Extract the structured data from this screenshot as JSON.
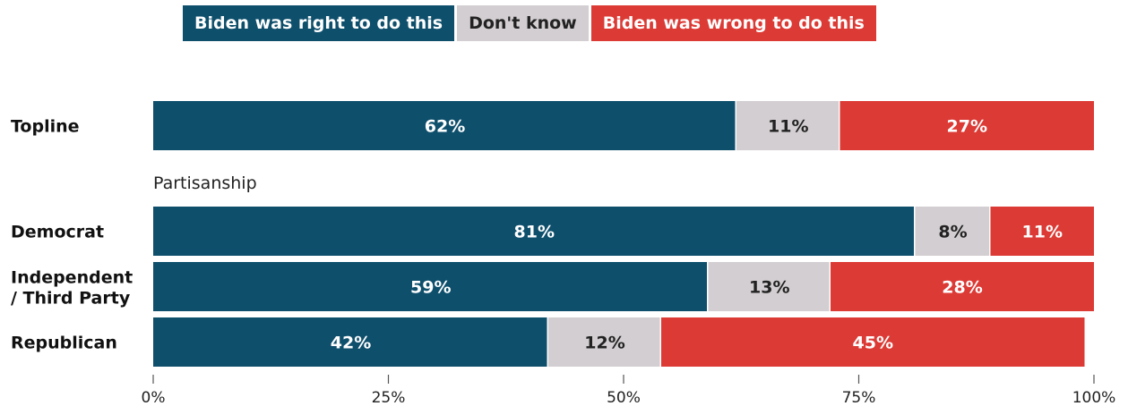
{
  "legend": [
    {
      "label": "Biden was right to do this",
      "color": "#0e4f6c"
    },
    {
      "label": "Don't know",
      "color": "#d3ced1"
    },
    {
      "label": "Biden was wrong to do this",
      "color": "#dc3a35"
    }
  ],
  "chart_data": {
    "type": "bar",
    "orientation": "horizontal",
    "stacked": true,
    "group_label": "Partisanship",
    "categories": [
      "Topline",
      "Democrat",
      "Independent / Third Party",
      "Republican"
    ],
    "series": [
      {
        "name": "Biden was right to do this",
        "color": "#0e4f6c",
        "values": [
          62,
          81,
          59,
          42
        ]
      },
      {
        "name": "Don't know",
        "color": "#d3ced1",
        "values": [
          11,
          8,
          13,
          12
        ]
      },
      {
        "name": "Biden was wrong to do this",
        "color": "#dc3a35",
        "values": [
          27,
          11,
          28,
          45
        ]
      }
    ],
    "data_labels": [
      [
        "62%",
        "11%",
        "27%"
      ],
      [
        "81%",
        "8%",
        "11%"
      ],
      [
        "59%",
        "13%",
        "28%"
      ],
      [
        "42%",
        "12%",
        "45%"
      ]
    ],
    "xlim": [
      0,
      100
    ],
    "x_ticks": [
      "0%",
      "25%",
      "50%",
      "75%",
      "100%"
    ],
    "grid": false,
    "legend_position": "top"
  }
}
